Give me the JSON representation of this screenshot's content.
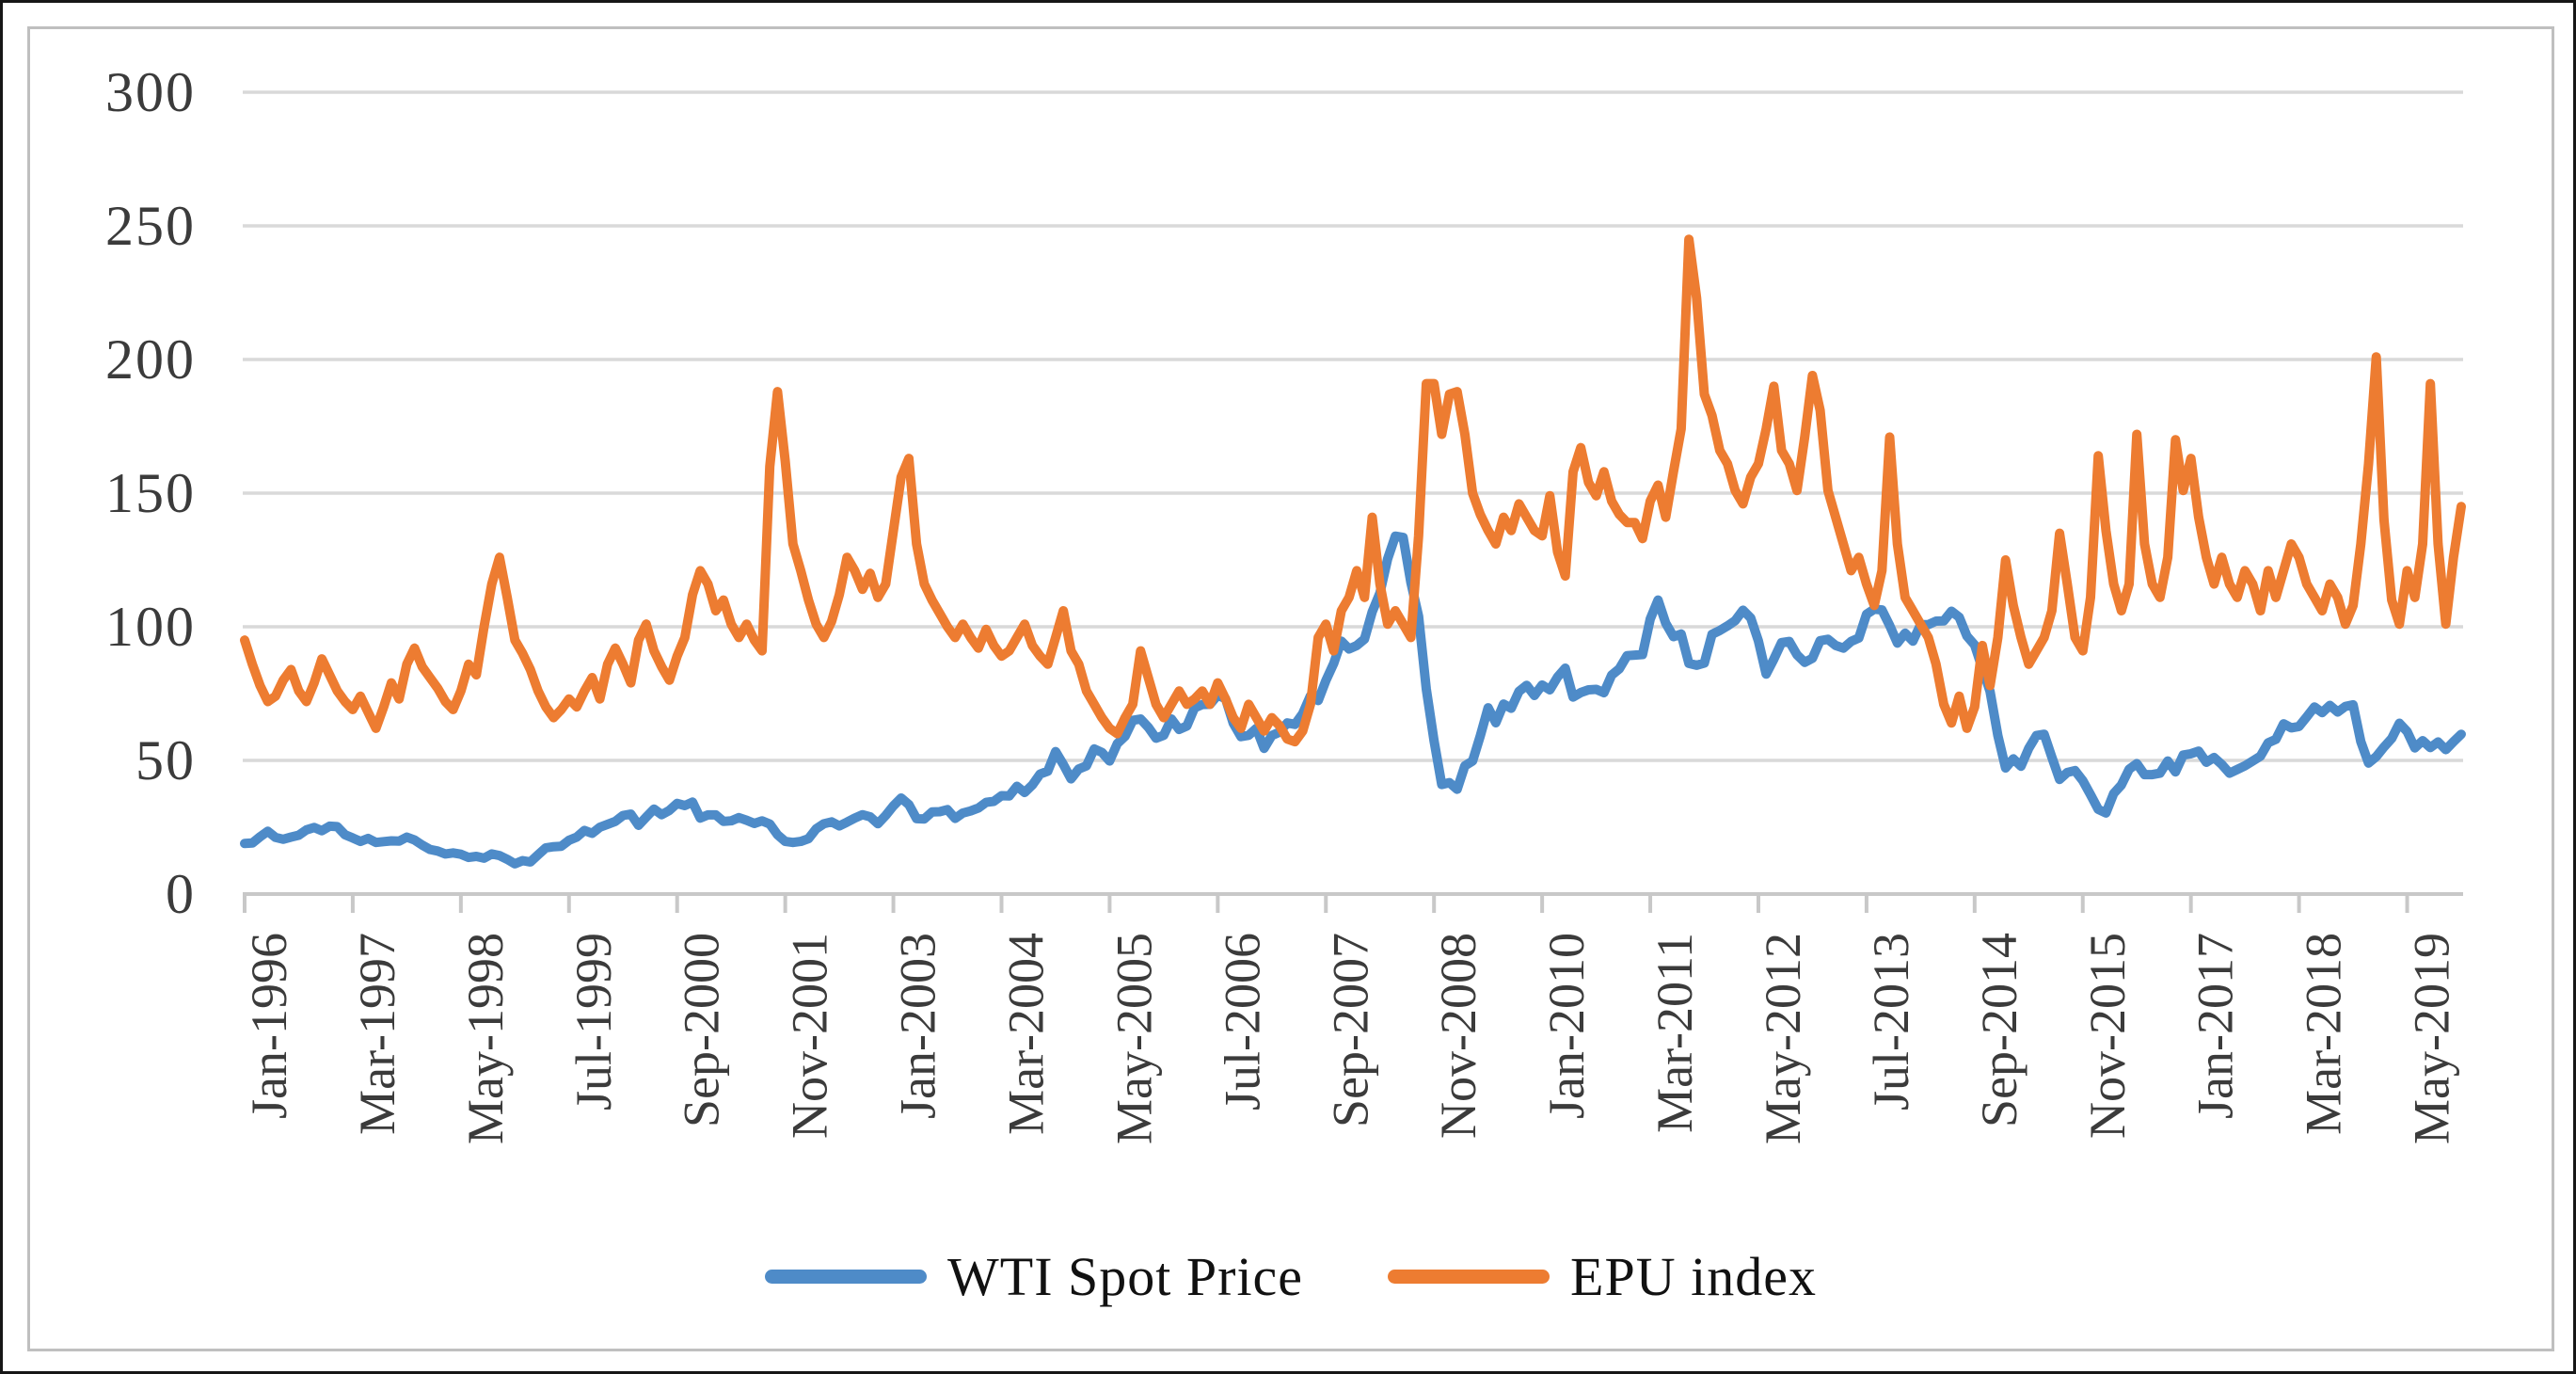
{
  "figure": {
    "background_color": "#ffffff",
    "outer_border_color": "#161616",
    "chart_frame_color": "#BFBFBF",
    "gridline_color": "#D9D9D9",
    "axis_line_color": "#C8C8C8",
    "tick_label_color": "#3B3B3B",
    "legend_text_color": "#111111"
  },
  "chart_data": {
    "type": "line",
    "title": "",
    "xlabel": "",
    "ylabel": "",
    "ylim": [
      0,
      300
    ],
    "grid": "horizontal",
    "legend_position": "bottom-center",
    "y_ticks": [
      0,
      50,
      100,
      150,
      200,
      250,
      300
    ],
    "x_tick_labels": [
      "Jan-1996",
      "Mar-1997",
      "May-1998",
      "Jul-1999",
      "Sep-2000",
      "Nov-2001",
      "Jan-2003",
      "Mar-2004",
      "May-2005",
      "Jul-2006",
      "Sep-2007",
      "Nov-2008",
      "Jan-2010",
      "Mar-2011",
      "May-2012",
      "Jul-2013",
      "Sep-2014",
      "Nov-2015",
      "Jan-2017",
      "Mar-2018",
      "May-2019"
    ],
    "x_tick_interval_months": 14,
    "x_start": "Jan-1996",
    "x_end": "Dec-2019",
    "frequency": "monthly",
    "points_per_series": 288,
    "series": [
      {
        "name": "WTI Spot Price",
        "color": "#4E8BC8",
        "values": [
          18.9,
          19.1,
          21.4,
          23.5,
          21.2,
          20.5,
          21.3,
          22.0,
          24.0,
          24.9,
          23.7,
          25.4,
          25.2,
          22.2,
          21.0,
          19.7,
          20.8,
          19.3,
          19.6,
          19.9,
          19.8,
          21.3,
          20.2,
          18.3,
          16.7,
          16.1,
          15.0,
          15.4,
          14.9,
          13.7,
          14.1,
          13.4,
          15.0,
          14.4,
          13.0,
          11.3,
          12.5,
          12.0,
          14.7,
          17.3,
          17.7,
          17.9,
          20.1,
          21.3,
          23.8,
          22.7,
          25.0,
          26.1,
          27.2,
          29.4,
          29.9,
          25.7,
          28.8,
          31.8,
          29.7,
          31.3,
          33.9,
          33.1,
          34.4,
          28.4,
          29.6,
          29.6,
          27.2,
          27.4,
          28.6,
          27.6,
          26.4,
          27.4,
          26.2,
          22.2,
          19.7,
          19.3,
          19.7,
          20.7,
          24.4,
          26.3,
          27.0,
          25.5,
          26.9,
          28.4,
          29.7,
          28.9,
          26.3,
          29.4,
          33.0,
          35.9,
          33.5,
          28.2,
          28.1,
          30.7,
          30.8,
          31.6,
          28.3,
          30.3,
          31.1,
          32.2,
          34.3,
          34.7,
          36.8,
          36.7,
          40.3,
          38.0,
          40.8,
          44.9,
          46.0,
          53.3,
          48.5,
          43.1,
          46.8,
          48.0,
          54.3,
          53.0,
          49.8,
          56.3,
          59.0,
          65.0,
          65.5,
          62.4,
          58.3,
          59.4,
          65.5,
          61.6,
          62.9,
          69.7,
          70.9,
          71.0,
          74.4,
          73.1,
          63.9,
          58.9,
          59.4,
          62.0,
          54.5,
          59.3,
          60.6,
          64.0,
          63.5,
          67.5,
          74.2,
          72.4,
          79.9,
          86.2,
          94.6,
          91.7,
          93.0,
          95.4,
          105.6,
          112.6,
          125.4,
          133.9,
          133.4,
          116.6,
          103.9,
          76.7,
          57.4,
          41.0,
          41.7,
          39.2,
          48.0,
          49.8,
          59.2,
          69.7,
          64.1,
          71.1,
          69.5,
          75.8,
          78.1,
          74.3,
          78.2,
          76.4,
          81.2,
          84.5,
          73.7,
          75.4,
          76.4,
          76.6,
          75.3,
          81.9,
          84.3,
          89.2,
          89.4,
          89.6,
          102.9,
          110.0,
          101.3,
          96.3,
          97.3,
          86.3,
          85.6,
          86.4,
          97.2,
          98.6,
          100.3,
          102.3,
          106.2,
          103.3,
          94.7,
          82.3,
          87.9,
          94.1,
          94.5,
          89.5,
          86.7,
          88.2,
          94.8,
          95.3,
          93.0,
          92.0,
          94.5,
          95.8,
          104.7,
          106.6,
          106.3,
          100.5,
          93.9,
          97.6,
          94.6,
          100.8,
          100.8,
          102.1,
          102.2,
          105.8,
          103.6,
          96.5,
          93.2,
          84.4,
          75.8,
          59.3,
          47.2,
          50.6,
          47.8,
          54.5,
          59.3,
          59.8,
          51.2,
          42.9,
          45.5,
          46.2,
          42.4,
          37.2,
          31.7,
          30.3,
          37.6,
          40.8,
          46.7,
          48.8,
          44.7,
          44.7,
          45.2,
          49.8,
          45.7,
          52.0,
          52.5,
          53.5,
          49.3,
          51.1,
          48.5,
          45.2,
          46.6,
          48.0,
          49.8,
          51.6,
          56.6,
          57.9,
          63.7,
          62.2,
          62.7,
          66.3,
          70.0,
          67.9,
          70.6,
          68.1,
          70.2,
          70.8,
          57.0,
          49.0,
          51.4,
          55.0,
          58.2,
          63.9,
          60.8,
          54.7,
          57.4,
          54.8,
          56.9,
          54.0,
          57.0,
          59.8
        ]
      },
      {
        "name": "EPU index",
        "color": "#ED7C31",
        "values": [
          95,
          86,
          78,
          72,
          74,
          80,
          84,
          76,
          72,
          79,
          88,
          82,
          76,
          72,
          69,
          74,
          68,
          62,
          70,
          79,
          73,
          86,
          92,
          85,
          81,
          77,
          72,
          69,
          76,
          86,
          82,
          100,
          116,
          126,
          111,
          95,
          90,
          84,
          76,
          70,
          66,
          69,
          73,
          70,
          76,
          81,
          73,
          86,
          92,
          86,
          79,
          95,
          101,
          91,
          85,
          80,
          89,
          96,
          112,
          121,
          116,
          106,
          110,
          101,
          96,
          101,
          95,
          91,
          160,
          188,
          162,
          131,
          121,
          110,
          101,
          96,
          102,
          112,
          126,
          121,
          114,
          120,
          111,
          116,
          136,
          156,
          163,
          131,
          116,
          110,
          105,
          100,
          96,
          101,
          96,
          92,
          99,
          93,
          89,
          91,
          96,
          101,
          93,
          89,
          86,
          96,
          106,
          91,
          86,
          76,
          71,
          66,
          62,
          60,
          66,
          71,
          91,
          81,
          71,
          66,
          71,
          76,
          71,
          73,
          76,
          71,
          79,
          73,
          66,
          62,
          71,
          66,
          61,
          66,
          63,
          58,
          57,
          61,
          71,
          96,
          101,
          91,
          106,
          111,
          121,
          111,
          141,
          116,
          101,
          106,
          101,
          96,
          134,
          191,
          191,
          172,
          187,
          188,
          172,
          150,
          142,
          136,
          131,
          141,
          136,
          146,
          141,
          136,
          134,
          149,
          128,
          119,
          158,
          167,
          154,
          149,
          158,
          147,
          142,
          139,
          139,
          133,
          147,
          153,
          141,
          158,
          174,
          245,
          223,
          187,
          179,
          166,
          161,
          151,
          146,
          156,
          161,
          174,
          190,
          166,
          161,
          151,
          171,
          194,
          181,
          151,
          141,
          131,
          121,
          126,
          116,
          108,
          121,
          171,
          131,
          111,
          106,
          101,
          96,
          86,
          71,
          64,
          74,
          62,
          70,
          93,
          78,
          96,
          125,
          108,
          96,
          86,
          91,
          96,
          106,
          135,
          116,
          96,
          91,
          111,
          164,
          136,
          116,
          106,
          116,
          172,
          131,
          116,
          111,
          126,
          170,
          151,
          163,
          141,
          126,
          116,
          126,
          116,
          111,
          121,
          116,
          106,
          121,
          111,
          121,
          131,
          126,
          116,
          111,
          106,
          116,
          111,
          101,
          108,
          131,
          161,
          201,
          140,
          110,
          101,
          121,
          111,
          131,
          191,
          131,
          101,
          126,
          145
        ]
      }
    ]
  },
  "legend": {
    "items": [
      {
        "label": "WTI Spot Price"
      },
      {
        "label": "EPU index"
      }
    ]
  }
}
